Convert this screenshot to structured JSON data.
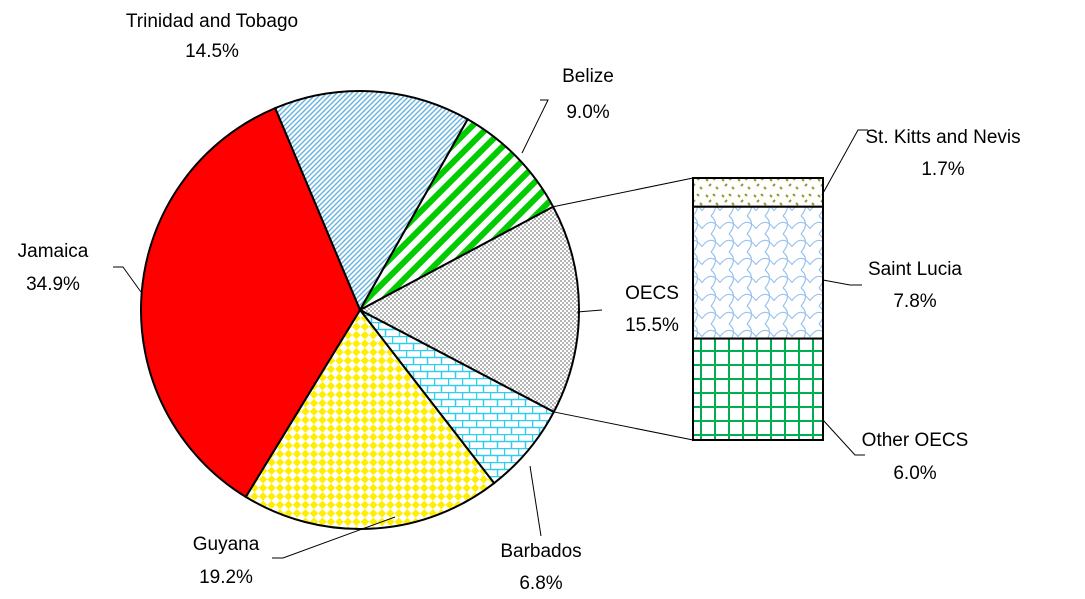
{
  "chart_data": {
    "type": "pie_of_bar",
    "categories": [
      "Trinidad and Tobago",
      "Belize",
      "OECS",
      "Barbados",
      "Guyana",
      "Jamaica"
    ],
    "values": [
      14.5,
      9.0,
      15.5,
      6.8,
      19.2,
      34.9
    ],
    "value_labels": [
      "14.5%",
      "9.0%",
      "15.5%",
      "6.8%",
      "19.2%",
      "34.9%"
    ],
    "colors": [
      "#66b3e0",
      "#00cc00",
      "#808080",
      "#33ccee",
      "#ffee00",
      "#ff0000"
    ],
    "patterns": [
      "diagonal-fine",
      "diagonal-wide",
      "dots",
      "bricks",
      "diamonds",
      "solid"
    ],
    "breakout": {
      "categories": [
        "St. Kitts and Nevis",
        "Saint Lucia",
        "Other OECS"
      ],
      "values": [
        1.7,
        7.8,
        6.0
      ],
      "value_labels": [
        "1.7%",
        "7.8%",
        "6.0%"
      ],
      "colors": [
        "#99992a",
        "#99c2ee",
        "#00b050"
      ],
      "patterns": [
        "confetti",
        "waves",
        "grid"
      ]
    }
  }
}
